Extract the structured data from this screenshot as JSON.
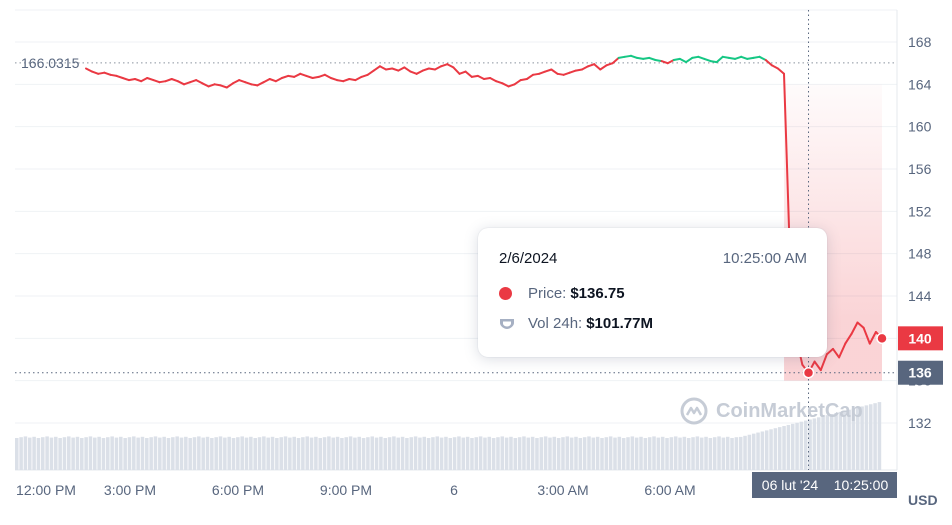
{
  "chart_data": {
    "type": "line",
    "currency_label": "USD",
    "y_ticks": [
      132,
      136,
      140,
      144,
      148,
      152,
      156,
      160,
      164,
      168
    ],
    "ylim": [
      129,
      170
    ],
    "x_tick_labels": [
      "12:00 PM",
      "3:00 PM",
      "6:00 PM",
      "9:00 PM",
      "6",
      "3:00 AM",
      "6:00 AM"
    ],
    "start_price_label": "166.0315",
    "start_price": 166.0315,
    "current_price_label": "140",
    "current_price": 140,
    "crosshair_price_label": "136",
    "crosshair_price": 136.75,
    "crosshair_date_label": "06 lut '24",
    "crosshair_time_label": "10:25:00",
    "series": [
      {
        "values": [
          165.5,
          165.2,
          165.0,
          165.1,
          164.9,
          164.8,
          164.6,
          164.4,
          164.5,
          164.3,
          164.6,
          164.4,
          164.2,
          164.3,
          164.5,
          164.3,
          164.0,
          164.2,
          164.4,
          164.1,
          163.8,
          164.0,
          163.9,
          163.7,
          164.1,
          164.4,
          164.2,
          164.0,
          163.9,
          164.2,
          164.5,
          164.3,
          164.6,
          164.8,
          164.7,
          165.0,
          164.8,
          164.6,
          164.7,
          164.9,
          164.6,
          164.4,
          164.3,
          164.5,
          164.4,
          164.7,
          164.9,
          165.3,
          165.7,
          165.4,
          165.5,
          165.3,
          165.6,
          165.2,
          165.0,
          165.3,
          165.5,
          165.4,
          165.7,
          165.9,
          165.6,
          165.0,
          165.2,
          164.7,
          164.8,
          164.5,
          164.6,
          164.3,
          164.1,
          163.8,
          164.0,
          164.4,
          164.5,
          164.9,
          165.0,
          165.2,
          165.4,
          165.0,
          164.9,
          165.1,
          165.3,
          165.4,
          165.7,
          165.9,
          165.4,
          165.8,
          166.0,
          166.5,
          166.6,
          166.7,
          166.5,
          166.4,
          166.5,
          166.3,
          166.2,
          166.0,
          166.3,
          166.4,
          166.1,
          166.5,
          166.6,
          166.4,
          166.2,
          166.1,
          166.6,
          166.5,
          166.4,
          166.6,
          166.4,
          166.5,
          166.6,
          166.3,
          165.8,
          165.5,
          165.0,
          147.0,
          140.0,
          137.5,
          136.75,
          137.8,
          137.0,
          138.5,
          139.0,
          138.2,
          139.5,
          140.4,
          141.5,
          141.0,
          139.5,
          140.6,
          140.0
        ],
        "colors_by_segment": "green when above 166.0315, red otherwise"
      }
    ],
    "volume_bars_note": "volume histogram along the bottom",
    "grid": true,
    "colors": {
      "up": "#16c784",
      "down": "#ea3943",
      "grid": "#eff2f5",
      "axis_text": "#58667e",
      "crosshair_box": "#58667e"
    }
  },
  "tooltip": {
    "date": "2/6/2024",
    "time": "10:25:00 AM",
    "price_label": "Price:",
    "price_value": "$136.75",
    "vol_label": "Vol 24h:",
    "vol_value": "$101.77M"
  },
  "watermark": {
    "text": "CoinMarketCap",
    "logo_icon": "coinmarketcap-logo-icon"
  }
}
